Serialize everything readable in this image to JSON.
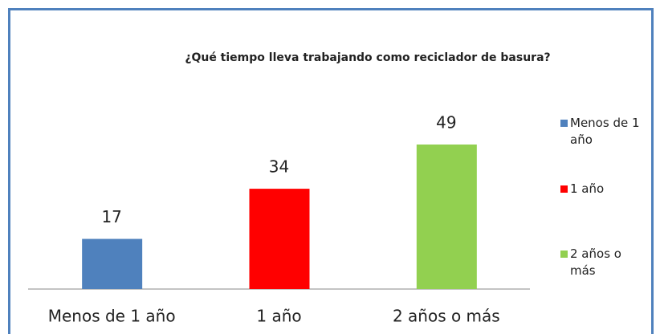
{
  "chart_data": {
    "type": "bar",
    "title": "¿Qué tiempo lleva trabajando como reciclador de basura?",
    "categories": [
      "Menos de 1 año",
      "1 año",
      "2 años o más"
    ],
    "values": [
      17,
      34,
      49
    ],
    "colors": [
      "#4f81bd",
      "#ff0000",
      "#92d050"
    ],
    "legend": "right"
  }
}
